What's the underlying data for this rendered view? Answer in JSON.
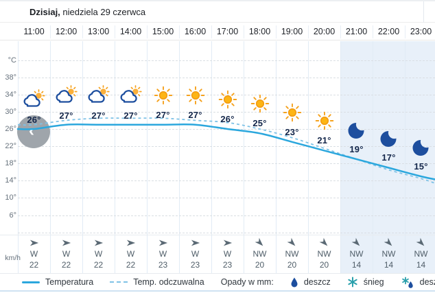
{
  "header": {
    "day_label": "Dzisiaj,",
    "date_label": "niedziela 29 czerwca"
  },
  "y_axis": {
    "unit_label": "°C",
    "tick_labels": [
      "38°",
      "34°",
      "30°",
      "26°",
      "22°",
      "18°",
      "14°",
      "10°",
      "6°"
    ],
    "wind_unit_label": "km/h"
  },
  "hours": [
    {
      "time": "11:00",
      "temp_label": "26°",
      "icon": "sun-cloud",
      "wind_dir": "W",
      "wind_speed": "22",
      "night": false
    },
    {
      "time": "12:00",
      "temp_label": "27°",
      "icon": "sun-cloud",
      "wind_dir": "W",
      "wind_speed": "22",
      "night": false
    },
    {
      "time": "13:00",
      "temp_label": "27°",
      "icon": "sun-cloud",
      "wind_dir": "W",
      "wind_speed": "22",
      "night": false
    },
    {
      "time": "14:00",
      "temp_label": "27°",
      "icon": "sun-cloud",
      "wind_dir": "W",
      "wind_speed": "22",
      "night": false
    },
    {
      "time": "15:00",
      "temp_label": "27°",
      "icon": "sun",
      "wind_dir": "W",
      "wind_speed": "23",
      "night": false
    },
    {
      "time": "16:00",
      "temp_label": "27°",
      "icon": "sun",
      "wind_dir": "W",
      "wind_speed": "23",
      "night": false
    },
    {
      "time": "17:00",
      "temp_label": "26°",
      "icon": "sun",
      "wind_dir": "W",
      "wind_speed": "23",
      "night": false
    },
    {
      "time": "18:00",
      "temp_label": "25°",
      "icon": "sun",
      "wind_dir": "NW",
      "wind_speed": "20",
      "night": false
    },
    {
      "time": "19:00",
      "temp_label": "23°",
      "icon": "sun",
      "wind_dir": "NW",
      "wind_speed": "20",
      "night": false
    },
    {
      "time": "20:00",
      "temp_label": "21°",
      "icon": "sun",
      "wind_dir": "NW",
      "wind_speed": "20",
      "night": false
    },
    {
      "time": "21:00",
      "temp_label": "19°",
      "icon": "moon",
      "wind_dir": "NW",
      "wind_speed": "14",
      "night": true
    },
    {
      "time": "22:00",
      "temp_label": "17°",
      "icon": "moon",
      "wind_dir": "NW",
      "wind_speed": "14",
      "night": true
    },
    {
      "time": "23:00",
      "temp_label": "15°",
      "icon": "moon",
      "wind_dir": "NW",
      "wind_speed": "14",
      "night": true
    }
  ],
  "chart_data": {
    "type": "line",
    "title": "Dzisiaj, niedziela 29 czerwca",
    "x": [
      "11:00",
      "12:00",
      "13:00",
      "14:00",
      "15:00",
      "16:00",
      "17:00",
      "18:00",
      "19:00",
      "20:00",
      "21:00",
      "22:00",
      "23:00"
    ],
    "series": [
      {
        "name": "Temperatura",
        "style": "solid",
        "color": "#2ba7dd",
        "values": [
          26,
          27,
          27,
          27,
          27,
          27,
          26,
          25,
          23,
          21,
          19,
          17,
          15
        ]
      },
      {
        "name": "Temp. odczuwalna",
        "style": "dashed",
        "color": "#7fc2e6",
        "values": [
          27,
          28,
          28.5,
          28.5,
          28.5,
          28,
          27.5,
          26,
          24,
          21.5,
          19,
          16.5,
          14.5
        ]
      }
    ],
    "ylabel": "°C",
    "yticks": [
      6,
      10,
      14,
      18,
      22,
      26,
      30,
      34,
      38
    ],
    "ylim": [
      2,
      42
    ],
    "grid": true,
    "legend_position": "bottom",
    "night_from_index": 10,
    "wind": {
      "unit": "km/h",
      "dirs": [
        "W",
        "W",
        "W",
        "W",
        "W",
        "W",
        "W",
        "NW",
        "NW",
        "NW",
        "NW",
        "NW",
        "NW"
      ],
      "speeds": [
        22,
        22,
        22,
        22,
        23,
        23,
        23,
        20,
        20,
        20,
        14,
        14,
        14
      ]
    }
  },
  "legend": {
    "temperature": "Temperatura",
    "feels": "Temp. odczuwalna",
    "precip_label": "Opady w mm:",
    "rain": "deszcz",
    "snow": "śnieg",
    "rain_snow": "deszcz ze śniegiem"
  },
  "controls": {
    "scroll_left_glyph": "‹"
  },
  "colors": {
    "temp_line": "#2ba7dd",
    "feels_line": "#7fc2e6",
    "night_bg": "#e8f0f9",
    "icon_navy": "#1d4e9e",
    "sun_orange": "#f5a11c",
    "snow_teal": "#2aa0ac",
    "wind_gray": "#5a6974"
  }
}
